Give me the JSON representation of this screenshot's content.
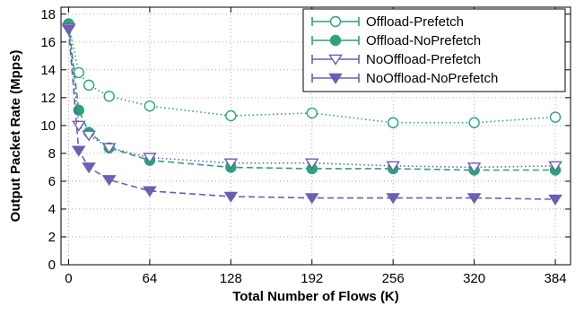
{
  "chart_data": {
    "type": "line",
    "title": "",
    "xlabel": "Total Number of Flows (K)",
    "ylabel": "Output Packet Rate (Mpps)",
    "xlim": [
      -6,
      396
    ],
    "ylim": [
      0,
      18.5
    ],
    "xticks": [
      0,
      64,
      128,
      192,
      256,
      320,
      384
    ],
    "yticks": [
      0,
      2,
      4,
      6,
      8,
      10,
      12,
      14,
      16,
      18
    ],
    "grid": "dotted",
    "legend_position": "top-right",
    "series": [
      {
        "name": "Offload-Prefetch",
        "color": "#2ca37a",
        "marker": "circle-open",
        "line": "dotted",
        "x": [
          0,
          8,
          16,
          32,
          64,
          128,
          192,
          256,
          320,
          384
        ],
        "y": [
          17.3,
          13.8,
          12.9,
          12.1,
          11.4,
          10.7,
          10.9,
          10.2,
          10.2,
          10.6
        ]
      },
      {
        "name": "Offload-NoPrefetch",
        "color": "#2ca37a",
        "marker": "circle-filled",
        "line": "dashed",
        "x": [
          0,
          8,
          16,
          32,
          64,
          128,
          192,
          256,
          320,
          384
        ],
        "y": [
          17.3,
          11.1,
          9.5,
          8.4,
          7.5,
          7.0,
          6.9,
          6.9,
          6.8,
          6.8
        ]
      },
      {
        "name": "NoOffload-Prefetch",
        "color": "#6a5fb3",
        "marker": "triangle-down-open",
        "line": "dotted",
        "x": [
          0,
          8,
          16,
          32,
          64,
          128,
          192,
          256,
          320,
          384
        ],
        "y": [
          17.0,
          10.0,
          9.3,
          8.4,
          7.7,
          7.3,
          7.3,
          7.1,
          7.0,
          7.1
        ]
      },
      {
        "name": "NoOffload-NoPrefetch",
        "color": "#6a5fb3",
        "marker": "triangle-down-filled",
        "line": "dashed",
        "x": [
          0,
          8,
          16,
          32,
          64,
          128,
          192,
          256,
          320,
          384
        ],
        "y": [
          16.9,
          8.2,
          7.0,
          6.1,
          5.3,
          4.9,
          4.8,
          4.8,
          4.8,
          4.7
        ]
      }
    ]
  }
}
